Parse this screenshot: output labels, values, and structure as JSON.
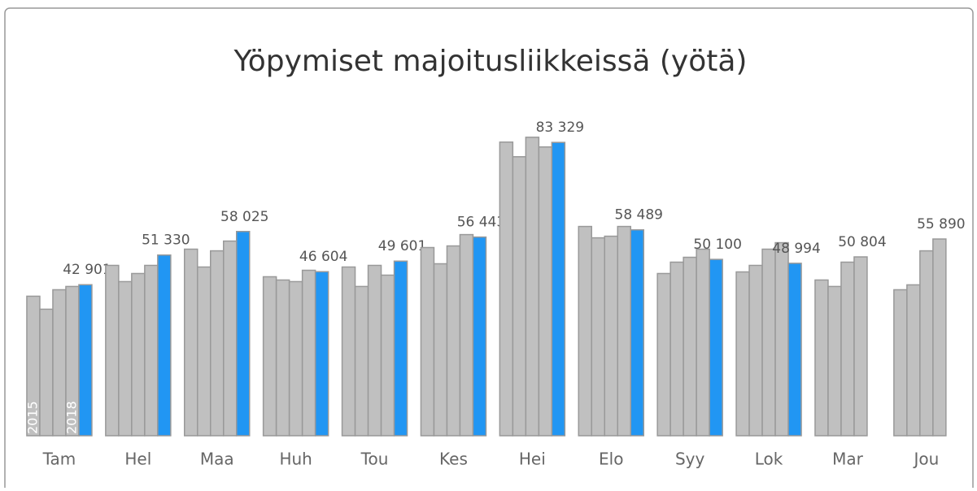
{
  "chart_data": {
    "type": "bar",
    "title": "Yöpymiset majoitusliikkeissä (yötä)",
    "categories": [
      "Tam",
      "Hel",
      "Maa",
      "Huh",
      "Tou",
      "Kes",
      "Hei",
      "Elo",
      "Syy",
      "Lok",
      "Mar",
      "Jou"
    ],
    "ylim": [
      0,
      100000
    ],
    "series": [
      {
        "name": "2015",
        "color": "#c0c0c0",
        "values": [
          39630,
          48390,
          53000,
          45160,
          47930,
          53460,
          83410,
          59450,
          46080,
          46540,
          44240,
          41470
        ]
      },
      {
        "name": null,
        "color": "#c0c0c0",
        "values": [
          35940,
          43780,
          47930,
          44240,
          42400,
          48850,
          79260,
          56220,
          49310,
          48390,
          42400,
          42860
        ]
      },
      {
        "name": null,
        "color": "#c0c0c0",
        "values": [
          41470,
          46080,
          52530,
          43780,
          48390,
          53920,
          84790,
          56680,
          50690,
          53000,
          49310,
          52530
        ]
      },
      {
        "name": "2018",
        "color": "#c0c0c0",
        "values": [
          42400,
          48390,
          55300,
          47000,
          45620,
          57140,
          82030,
          59450,
          53000,
          54840,
          50804,
          55890
        ],
        "value_labels": [
          null,
          null,
          null,
          null,
          null,
          null,
          null,
          null,
          null,
          null,
          "50 804",
          "55 890"
        ]
      },
      {
        "name": null,
        "color": "#2196f3",
        "values": [
          42901,
          51330,
          58025,
          46604,
          49601,
          56443,
          83329,
          58489,
          50100,
          48994,
          null,
          null
        ],
        "value_labels": [
          "42 901",
          "51 330",
          "58 025",
          "46 604",
          "49 601",
          "56 443",
          "83 329",
          "58 489",
          "50 100",
          "48 994",
          null,
          null
        ]
      }
    ]
  }
}
